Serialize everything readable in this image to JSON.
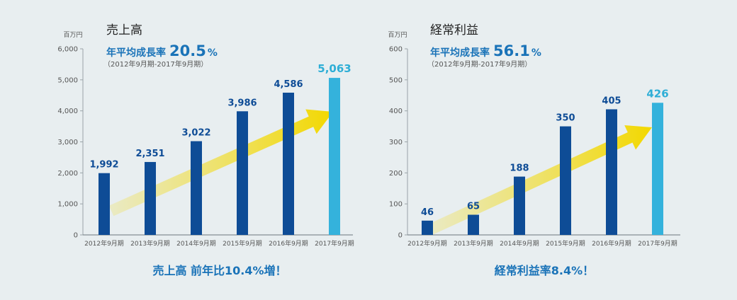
{
  "colors": {
    "bar": "#0e4c96",
    "bar_highlight": "#34b2dc",
    "arrow": "#f3d800",
    "accent_text": "#1a73b8"
  },
  "chart_data": [
    {
      "type": "bar",
      "title": "売上高",
      "unit": "百万円",
      "cagr_label": "年平均成長率",
      "cagr_value": "20.5",
      "cagr_unit": "%",
      "period": "（2012年9月期-2017年9月期）",
      "categories": [
        "2012年9月期",
        "2013年9月期",
        "2014年9月期",
        "2015年9月期",
        "2016年9月期",
        "2017年9月期"
      ],
      "values": [
        1992,
        2351,
        3022,
        3986,
        4586,
        5063
      ],
      "value_labels": [
        "1,992",
        "2,351",
        "3,022",
        "3,986",
        "4,586",
        "5,063"
      ],
      "highlight_index": 5,
      "ylim": [
        0,
        6000
      ],
      "yticks": [
        0,
        1000,
        2000,
        3000,
        4000,
        5000,
        6000
      ],
      "ytick_labels": [
        "0",
        "1,000",
        "2,000",
        "3,000",
        "4,000",
        "5,000",
        "6,000"
      ],
      "grid": false,
      "footer": "売上高 前年比10.4%増！"
    },
    {
      "type": "bar",
      "title": "経常利益",
      "unit": "百万円",
      "cagr_label": "年平均成長率",
      "cagr_value": "56.1",
      "cagr_unit": "%",
      "period": "（2012年9月期-2017年9月期）",
      "categories": [
        "2012年9月期",
        "2013年9月期",
        "2014年9月期",
        "2015年9月期",
        "2016年9月期",
        "2017年9月期"
      ],
      "values": [
        46,
        65,
        188,
        350,
        405,
        426
      ],
      "value_labels": [
        "46",
        "65",
        "188",
        "350",
        "405",
        "426"
      ],
      "highlight_index": 5,
      "ylim": [
        0,
        600
      ],
      "yticks": [
        0,
        100,
        200,
        300,
        400,
        500,
        600
      ],
      "ytick_labels": [
        "0",
        "100",
        "200",
        "300",
        "400",
        "500",
        "600"
      ],
      "grid": false,
      "footer": "経常利益率8.4%！"
    }
  ]
}
